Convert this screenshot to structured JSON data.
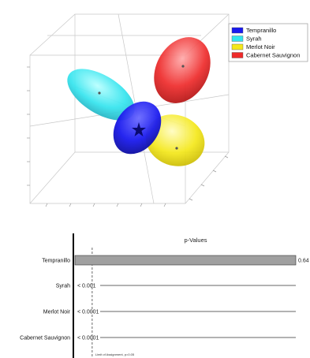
{
  "chart_data": [
    {
      "type": "scatter",
      "subtype": "3d-confidence-ellipsoids",
      "legend_position": "top-right",
      "grid": true,
      "series": [
        {
          "name": "Tempranillo",
          "color": "#1a1aee",
          "marker": "star"
        },
        {
          "name": "Syrah",
          "color": "#33e4ee",
          "marker": "dot"
        },
        {
          "name": "Merlot Noir",
          "color": "#f4e81a",
          "marker": "dot"
        },
        {
          "name": "Cabernet Sauvignon",
          "color": "#ee2a2a",
          "marker": "dot"
        }
      ]
    },
    {
      "type": "bar",
      "orientation": "horizontal",
      "title": "p-Values",
      "categories": [
        "Tempranillo",
        "Syrah",
        "Merlot Noir",
        "Cabernet Sauvignon"
      ],
      "values": [
        0.64,
        0.001,
        0.0001,
        0.0001
      ],
      "value_labels": [
        "0.64",
        "< 0.001",
        "< 0.0001",
        "< 0.0001"
      ],
      "xlim": [
        0,
        0.64
      ],
      "threshold": {
        "value": 0.05,
        "label": "Limit of Assignment, p=0.05"
      },
      "bar_color": "#a0a0a0"
    }
  ]
}
